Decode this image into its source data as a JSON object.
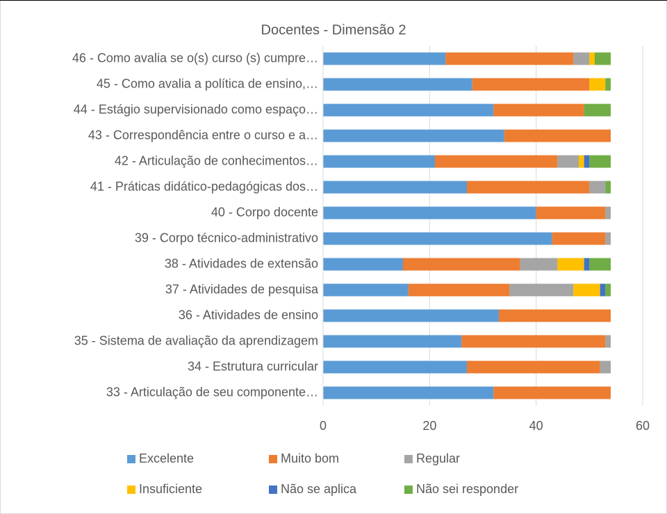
{
  "chart_data": {
    "type": "stacked_barh",
    "title": "Docentes - Dimensão 2",
    "categories": [
      "46 - Como avalia se o(s) curso (s) cumpre…",
      "45 - Como avalia a política de ensino,…",
      "44 - Estágio supervisionado como espaço…",
      "43 - Correspondência entre o curso e a…",
      "42 - Articulação de conhecimentos…",
      "41 - Práticas didático-pedagógicas dos…",
      "40 - Corpo docente",
      "39 - Corpo técnico-administrativo",
      "38 - Atividades de extensão",
      "37 - Atividades de pesquisa",
      "36 - Atividades de ensino",
      "35 - Sistema de avaliação da aprendizagem",
      "34 - Estrutura curricular",
      "33 - Articulação de seu componente…"
    ],
    "series": [
      {
        "name": "Excelente",
        "color": "#5b9bd5",
        "values": [
          23,
          28,
          32,
          34,
          21,
          27,
          40,
          43,
          15,
          16,
          33,
          26,
          27,
          32
        ]
      },
      {
        "name": "Muito bom",
        "color": "#ed7d31",
        "values": [
          24,
          22,
          17,
          20,
          23,
          23,
          13,
          10,
          22,
          19,
          21,
          27,
          25,
          22
        ]
      },
      {
        "name": "Regular",
        "color": "#a5a5a5",
        "values": [
          3,
          0,
          0,
          0,
          4,
          3,
          1,
          1,
          7,
          12,
          0,
          1,
          2,
          0
        ]
      },
      {
        "name": "Insuficiente",
        "color": "#ffc000",
        "values": [
          1,
          3,
          0,
          0,
          1,
          0,
          0,
          0,
          5,
          5,
          0,
          0,
          0,
          0
        ]
      },
      {
        "name": "Não se aplica",
        "color": "#4472c4",
        "values": [
          0,
          0,
          0,
          0,
          1,
          0,
          0,
          0,
          1,
          1,
          0,
          0,
          0,
          0
        ]
      },
      {
        "name": "Não sei responder",
        "color": "#70ad47",
        "values": [
          3,
          1,
          5,
          0,
          4,
          1,
          0,
          0,
          4,
          1,
          0,
          0,
          0,
          0
        ]
      }
    ],
    "xlim": [
      0,
      60
    ],
    "xticks": [
      0,
      20,
      40,
      60
    ],
    "grid": true
  }
}
